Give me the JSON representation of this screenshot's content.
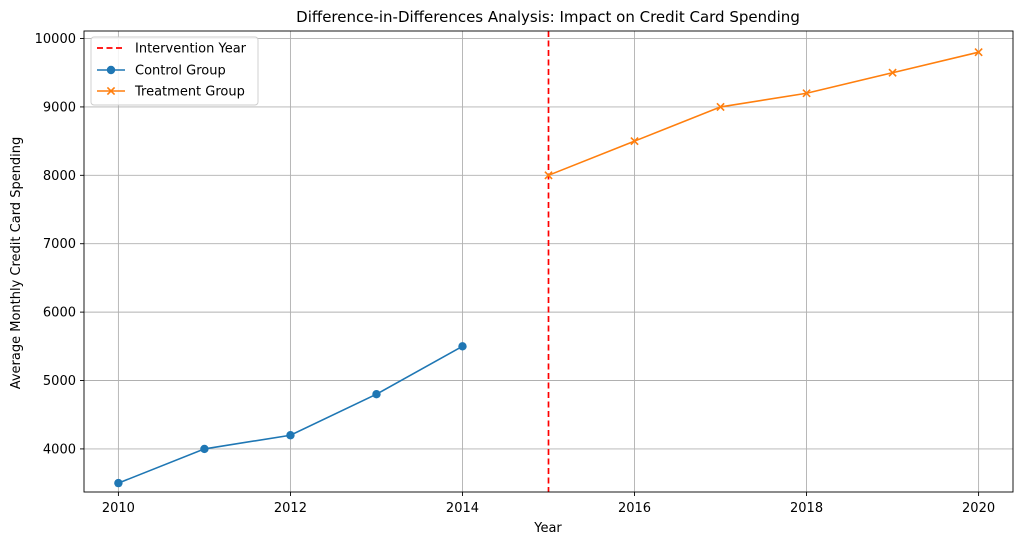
{
  "chart_data": {
    "type": "line",
    "title": "Difference-in-Differences Analysis: Impact on Credit Card Spending",
    "xlabel": "Year",
    "ylabel": "Average Monthly Credit Card Spending",
    "xlim": [
      2009.6,
      2020.4
    ],
    "ylim": [
      3370,
      10110
    ],
    "xticks": [
      2010,
      2012,
      2014,
      2016,
      2018,
      2020
    ],
    "yticks": [
      4000,
      5000,
      6000,
      7000,
      8000,
      9000,
      10000
    ],
    "grid": true,
    "legend_position": "top-left",
    "series": [
      {
        "name": "Control Group",
        "color": "#1f77b4",
        "marker": "circle",
        "x": [
          2010,
          2011,
          2012,
          2013,
          2014
        ],
        "y": [
          3500,
          4000,
          4200,
          4800,
          5500
        ]
      },
      {
        "name": "Treatment Group",
        "color": "#ff7f0e",
        "marker": "x",
        "x": [
          2015,
          2016,
          2017,
          2018,
          2019,
          2020
        ],
        "y": [
          8000,
          8500,
          9000,
          9200,
          9500,
          9800
        ]
      }
    ],
    "vlines": [
      {
        "name": "Intervention Year",
        "x": 2015,
        "color": "#ff0000",
        "style": "dashed"
      }
    ],
    "legend": [
      {
        "label": "Intervention Year",
        "kind": "vline"
      },
      {
        "label": "Control Group",
        "kind": "series",
        "series_index": 0
      },
      {
        "label": "Treatment Group",
        "kind": "series",
        "series_index": 1
      }
    ]
  }
}
